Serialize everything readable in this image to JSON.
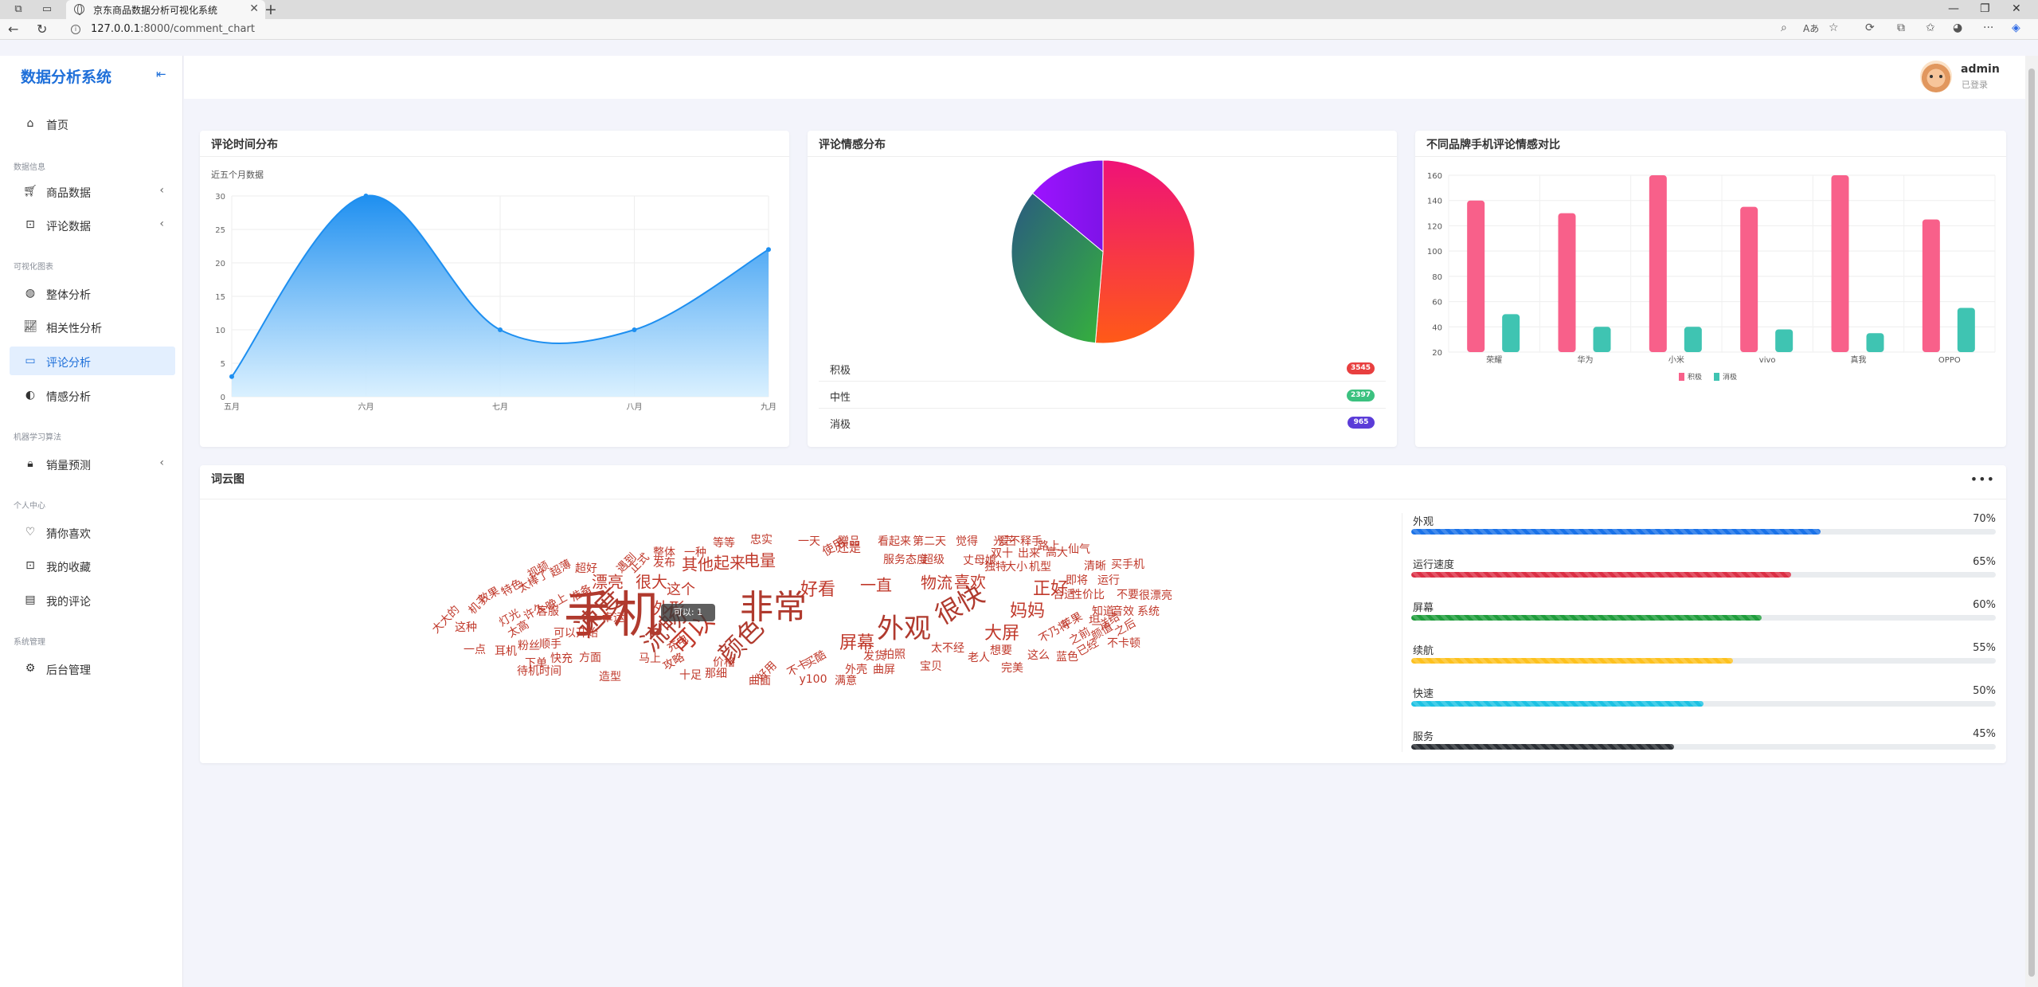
{
  "browser": {
    "tab_title": "京东商品数据分析可视化系统",
    "url_host": "127.0.0.1",
    "url_rest": ":8000/comment_chart"
  },
  "sidebar": {
    "brand": "数据分析系统",
    "sections": {
      "data_info": "数据信息",
      "visual": "可视化图表",
      "ml": "机器学习算法",
      "personal": "个人中心",
      "system": "系统管理"
    },
    "items": {
      "home": "首页",
      "goods_data": "商品数据",
      "comment_data": "评论数据",
      "overall": "整体分析",
      "correlation": "相关性分析",
      "comment_analysis": "评论分析",
      "sentiment": "情感分析",
      "sales_forecast": "销量预测",
      "guess_like": "猜你喜欢",
      "favorites": "我的收藏",
      "my_comments": "我的评论",
      "admin": "后台管理"
    }
  },
  "header": {
    "user_name": "admin",
    "user_status": "已登录"
  },
  "time_card": {
    "title": "评论时间分布",
    "chart_data": {
      "type": "area",
      "title": "近五个月数据",
      "categories": [
        "五月",
        "六月",
        "七月",
        "八月",
        "九月"
      ],
      "values": [
        3,
        30,
        10,
        10,
        22
      ],
      "ylim": [
        0,
        30
      ],
      "yticks": [
        0,
        5,
        10,
        15,
        20,
        25,
        30
      ],
      "colors": {
        "line": "#1e8ff0",
        "fill_top": "#1e8ff0",
        "fill_bottom": "#d6efff"
      }
    }
  },
  "sentiment_card": {
    "title": "评论情感分布",
    "chart_data": {
      "type": "pie",
      "slices": [
        {
          "name": "积极",
          "value": 3545,
          "color": "#f5345b"
        },
        {
          "name": "中性",
          "value": 2397,
          "color": "#26a69a"
        },
        {
          "name": "消极",
          "value": 965,
          "color": "#8b17f5"
        }
      ]
    },
    "rows": [
      {
        "label": "积极",
        "value": "3545",
        "color": "#e83f3f"
      },
      {
        "label": "中性",
        "value": "2397",
        "color": "#3bc17f"
      },
      {
        "label": "消极",
        "value": "965",
        "color": "#5b3cd8"
      }
    ]
  },
  "brand_card": {
    "title": "不同品牌手机评论情感对比",
    "chart_data": {
      "type": "bar",
      "categories": [
        "荣耀",
        "华为",
        "小米",
        "vivo",
        "真我",
        "OPPO"
      ],
      "series": [
        {
          "name": "积极",
          "values": [
            140,
            130,
            160,
            135,
            160,
            125
          ],
          "color": "#f8608a"
        },
        {
          "name": "消极",
          "values": [
            50,
            40,
            40,
            38,
            35,
            55
          ],
          "color": "#3fc4b2"
        }
      ],
      "ylim": [
        20,
        160
      ],
      "yticks": [
        20,
        40,
        60,
        80,
        100,
        120,
        140,
        160
      ],
      "legend": "bottom-center"
    }
  },
  "wordcloud_card": {
    "title": "词云图",
    "tooltip": "可以: 1",
    "words": [
      {
        "t": "手机",
        "s": 62,
        "r": 0
      },
      {
        "t": "非常",
        "s": 42,
        "r": 0
      },
      {
        "t": "外观",
        "s": 34,
        "r": 0
      },
      {
        "t": "很快",
        "s": 32,
        "r": -30
      },
      {
        "t": "速度",
        "s": 34,
        "r": -45
      },
      {
        "t": "流畅",
        "s": 32,
        "r": -45
      },
      {
        "t": "颜色",
        "s": 32,
        "r": -45
      },
      {
        "t": "可以",
        "s": 30,
        "r": -45
      },
      {
        "t": "屏幕",
        "s": 22,
        "r": 0
      },
      {
        "t": "大屏",
        "s": 22,
        "r": 0
      },
      {
        "t": "妈妈",
        "s": 22,
        "r": 0
      },
      {
        "t": "正好",
        "s": 22,
        "r": 0
      },
      {
        "t": "好看",
        "s": 22,
        "r": 0
      },
      {
        "t": "一直",
        "s": 20,
        "r": 0
      },
      {
        "t": "物流",
        "s": 20,
        "r": 0
      },
      {
        "t": "喜欢",
        "s": 20,
        "r": 0
      },
      {
        "t": "漂亮",
        "s": 20,
        "r": 0
      },
      {
        "t": "很大",
        "s": 20,
        "r": 0
      },
      {
        "t": "其他",
        "s": 20,
        "r": 0
      },
      {
        "t": "起来",
        "s": 20,
        "r": 0
      },
      {
        "t": "电量",
        "s": 20,
        "r": 0
      },
      {
        "t": "外形",
        "s": 20,
        "r": 0
      },
      {
        "t": "这个",
        "s": 18,
        "r": 0
      },
      {
        "t": "使用",
        "s": 15,
        "r": -30
      },
      {
        "t": "还是",
        "s": 15,
        "r": 0
      },
      {
        "t": "服务态度",
        "s": 14,
        "r": 0
      },
      {
        "t": "超级",
        "s": 14,
        "r": 0
      },
      {
        "t": "丈母娘",
        "s": 14,
        "r": 0
      },
      {
        "t": "双十",
        "s": 14,
        "r": 0
      },
      {
        "t": "出来",
        "s": 14,
        "r": 0
      },
      {
        "t": "高大",
        "s": 14,
        "r": 0
      },
      {
        "t": "清晰",
        "s": 14,
        "r": 0
      },
      {
        "t": "买手机",
        "s": 14,
        "r": 0
      },
      {
        "t": "独特",
        "s": 14,
        "r": 0
      },
      {
        "t": "大小",
        "s": 14,
        "r": 0
      },
      {
        "t": "机型",
        "s": 14,
        "r": 0
      },
      {
        "t": "即将",
        "s": 14,
        "r": 0
      },
      {
        "t": "运行",
        "s": 14,
        "r": 0
      },
      {
        "t": "合适",
        "s": 14,
        "r": 0
      },
      {
        "t": "性价比",
        "s": 14,
        "r": 0
      },
      {
        "t": "不要",
        "s": 14,
        "r": 0
      },
      {
        "t": "很漂亮",
        "s": 14,
        "r": 0
      },
      {
        "t": "知道",
        "s": 14,
        "r": 0
      },
      {
        "t": "音效",
        "s": 14,
        "r": 0
      },
      {
        "t": "系统",
        "s": 14,
        "r": 0
      },
      {
        "t": "苹果",
        "s": 14,
        "r": -30
      },
      {
        "t": "坦",
        "s": 14,
        "r": 0
      },
      {
        "t": "不乃将",
        "s": 14,
        "r": -30
      },
      {
        "t": "之前",
        "s": 14,
        "r": -30
      },
      {
        "t": "颜值",
        "s": 14,
        "r": -30
      },
      {
        "t": "送给",
        "s": 14,
        "r": -30
      },
      {
        "t": "之后",
        "s": 14,
        "r": -30
      },
      {
        "t": "不卡顿",
        "s": 14,
        "r": 0
      },
      {
        "t": "已经",
        "s": 14,
        "r": -30
      },
      {
        "t": "蓝色",
        "s": 14,
        "r": 0
      },
      {
        "t": "这么",
        "s": 14,
        "r": 0
      },
      {
        "t": "完美",
        "s": 14,
        "r": 0
      },
      {
        "t": "想要",
        "s": 14,
        "r": 0
      },
      {
        "t": "老人",
        "s": 14,
        "r": 0
      },
      {
        "t": "太不经",
        "s": 14,
        "r": 0
      },
      {
        "t": "宝贝",
        "s": 14,
        "r": 0
      },
      {
        "t": "曲屏",
        "s": 14,
        "r": 0
      },
      {
        "t": "外壳",
        "s": 14,
        "r": 0
      },
      {
        "t": "拍照",
        "s": 14,
        "r": 0
      },
      {
        "t": "发货",
        "s": 14,
        "r": 0
      },
      {
        "t": "满意",
        "s": 14,
        "r": 0
      },
      {
        "t": "y100",
        "s": 14,
        "r": 0
      },
      {
        "t": "不卡",
        "s": 14,
        "r": -30
      },
      {
        "t": "买酷",
        "s": 14,
        "r": -30
      },
      {
        "t": "曲面",
        "s": 14,
        "r": 0
      },
      {
        "t": "好用",
        "s": 14,
        "r": -45
      },
      {
        "t": "十足",
        "s": 14,
        "r": 0
      },
      {
        "t": "那细",
        "s": 14,
        "r": 0
      },
      {
        "t": "价格",
        "s": 14,
        "r": 0
      },
      {
        "t": "攻略",
        "s": 14,
        "r": -30
      },
      {
        "t": "造型",
        "s": 14,
        "r": 0
      },
      {
        "t": "马上",
        "s": 14,
        "r": 0
      },
      {
        "t": "充电",
        "s": 14,
        "r": -30
      },
      {
        "t": "待机时间",
        "s": 14,
        "r": 0
      },
      {
        "t": "耳机",
        "s": 14,
        "r": 0
      },
      {
        "t": "下单",
        "s": 14,
        "r": 0
      },
      {
        "t": "快充",
        "s": 14,
        "r": 0
      },
      {
        "t": "方面",
        "s": 14,
        "r": 0
      },
      {
        "t": "一点",
        "s": 14,
        "r": 0
      },
      {
        "t": "粉丝",
        "s": 14,
        "r": 0
      },
      {
        "t": "顺手",
        "s": 14,
        "r": 0
      },
      {
        "t": "可以开始",
        "s": 14,
        "r": 0
      },
      {
        "t": "太高",
        "s": 14,
        "r": -30
      },
      {
        "t": "这种",
        "s": 14,
        "r": 0
      },
      {
        "t": "客服",
        "s": 14,
        "r": 0
      },
      {
        "t": "灯光",
        "s": 14,
        "r": -30
      },
      {
        "t": "许久",
        "s": 14,
        "r": -30
      },
      {
        "t": "晚上",
        "s": 14,
        "r": -30
      },
      {
        "t": "准备",
        "s": 14,
        "r": -30
      },
      {
        "t": "大大的",
        "s": 14,
        "r": -45
      },
      {
        "t": "机子",
        "s": 14,
        "r": -45
      },
      {
        "t": "效果",
        "s": 14,
        "r": -30
      },
      {
        "t": "特色",
        "s": 14,
        "r": -30
      },
      {
        "t": "太棒了",
        "s": 14,
        "r": -30
      },
      {
        "t": "视频",
        "s": 14,
        "r": -30
      },
      {
        "t": "超薄",
        "s": 14,
        "r": -30
      },
      {
        "t": "超好",
        "s": 14,
        "r": 0
      },
      {
        "t": "遇到",
        "s": 14,
        "r": -45
      },
      {
        "t": "正式",
        "s": 14,
        "r": -45
      },
      {
        "t": "发布",
        "s": 14,
        "r": 0
      },
      {
        "t": "整体",
        "s": 14,
        "r": 0
      },
      {
        "t": "一种",
        "s": 14,
        "r": 0
      },
      {
        "t": "等等",
        "s": 14,
        "r": 0
      },
      {
        "t": "忠实",
        "s": 14,
        "r": 0
      },
      {
        "t": "一天",
        "s": 14,
        "r": 0
      },
      {
        "t": "赠品",
        "s": 14,
        "r": 0
      },
      {
        "t": "看起来",
        "s": 14,
        "r": 0
      },
      {
        "t": "第二天",
        "s": 14,
        "r": 0
      },
      {
        "t": "觉得",
        "s": 14,
        "r": 0
      },
      {
        "t": "光芒",
        "s": 14,
        "r": 0
      },
      {
        "t": "爱不释手",
        "s": 14,
        "r": 0
      },
      {
        "t": "路上",
        "s": 14,
        "r": 0
      },
      {
        "t": "仙气",
        "s": 14,
        "r": 0
      },
      {
        "t": "幸运",
        "s": 14,
        "r": 0
      }
    ]
  },
  "progress_items": [
    {
      "label": "外观",
      "pct": "70%",
      "value": 0.7,
      "color": "#1a72e8"
    },
    {
      "label": "运行速度",
      "pct": "65%",
      "value": 0.65,
      "color": "#dc2f45"
    },
    {
      "label": "屏幕",
      "pct": "60%",
      "value": 0.6,
      "color": "#1f9d3c"
    },
    {
      "label": "续航",
      "pct": "55%",
      "value": 0.55,
      "color": "#fdc11e"
    },
    {
      "label": "快速",
      "pct": "50%",
      "value": 0.5,
      "color": "#1cc2e3"
    },
    {
      "label": "服务",
      "pct": "45%",
      "value": 0.45,
      "color": "#2b2f35"
    }
  ]
}
